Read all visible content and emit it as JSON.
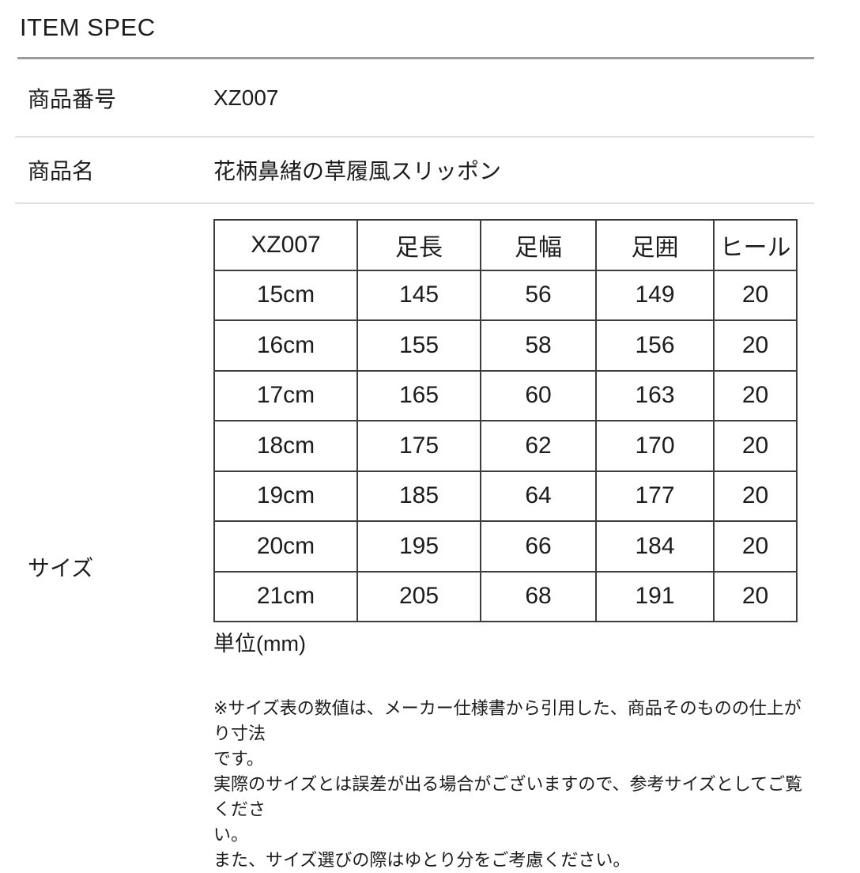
{
  "header": {
    "title": "ITEM SPEC"
  },
  "spec": {
    "product_number": {
      "label": "商品番号",
      "value": "XZ007"
    },
    "product_name": {
      "label": "商品名",
      "value": "花柄鼻緒の草履風スリッポン"
    },
    "size": {
      "label": "サイズ"
    }
  },
  "size_table": {
    "headers": [
      "XZ007",
      "足長",
      "足幅",
      "足囲",
      "ヒール"
    ],
    "rows": [
      [
        "15cm",
        "145",
        "56",
        "149",
        "20"
      ],
      [
        "16cm",
        "155",
        "58",
        "156",
        "20"
      ],
      [
        "17cm",
        "165",
        "60",
        "163",
        "20"
      ],
      [
        "18cm",
        "175",
        "62",
        "170",
        "20"
      ],
      [
        "19cm",
        "185",
        "64",
        "177",
        "20"
      ],
      [
        "20cm",
        "195",
        "66",
        "184",
        "20"
      ],
      [
        "21cm",
        "205",
        "68",
        "191",
        "20"
      ]
    ],
    "unit_label": "単位(mm)"
  },
  "notes": {
    "lines": [
      "※サイズ表の数値は、メーカー仕様書から引用した、商品そのものの仕上がり寸法",
      "です。",
      "実際のサイズとは誤差が出る場合がございますので、参考サイズとしてご覧くださ",
      "い。",
      "また、サイズ選びの際はゆとり分をご考慮ください。"
    ]
  },
  "colors": {
    "text": "#1c1c1c",
    "table_border": "#3d3d3d",
    "divider_strong": "#9b9b9b",
    "divider_light": "#e0e0e0"
  }
}
